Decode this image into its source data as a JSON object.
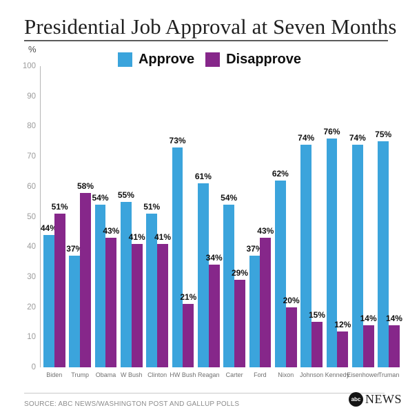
{
  "title": "Presidential Job Approval at Seven Months",
  "y_axis_unit": "%",
  "source": "SOURCE: ABC NEWS/WASHINGTON POST  AND GALLUP POLLS",
  "logo": {
    "abc": "abc",
    "news": "NEWS"
  },
  "colors": {
    "approve": "#3BA4DC",
    "disapprove": "#86278A"
  },
  "chart_data": {
    "type": "bar",
    "title": "Presidential Job Approval at Seven Months",
    "categories": [
      "Biden",
      "Trump",
      "Obama",
      "W Bush",
      "Clinton",
      "HW Bush",
      "Reagan",
      "Carter",
      "Ford",
      "Nixon",
      "Johnson",
      "Kennedy",
      "Eisenhower",
      "Truman"
    ],
    "series": [
      {
        "name": "Approve",
        "color": "#3BA4DC",
        "values": [
          44,
          37,
          54,
          55,
          51,
          73,
          61,
          54,
          37,
          62,
          74,
          76,
          74,
          75
        ]
      },
      {
        "name": "Disapprove",
        "color": "#86278A",
        "values": [
          51,
          58,
          43,
          41,
          41,
          21,
          34,
          29,
          43,
          20,
          15,
          12,
          14,
          14
        ]
      }
    ],
    "xlabel": "",
    "ylabel": "%",
    "ylim": [
      0,
      100
    ],
    "y_ticks": [
      100,
      90,
      80,
      70,
      60,
      50,
      40,
      30,
      20,
      10,
      0
    ],
    "value_suffix": "%",
    "grid": false,
    "legend_position": "top"
  }
}
